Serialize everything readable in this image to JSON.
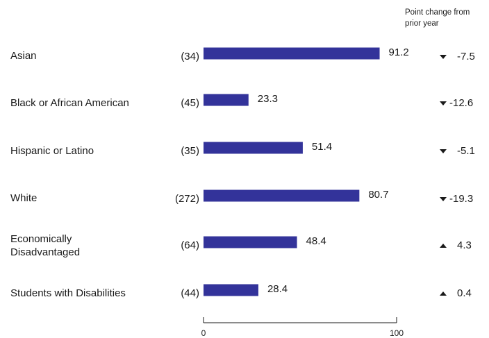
{
  "chart_data": {
    "type": "bar",
    "orientation": "horizontal",
    "categories": [
      "Asian",
      "Black or African American",
      "Hispanic or Latino",
      "White",
      "Economically Disadvantaged",
      "Students with Disabilities"
    ],
    "counts": [
      "(34)",
      "(45)",
      "(35)",
      "(272)",
      "(64)",
      "(44)"
    ],
    "values": [
      91.2,
      23.3,
      51.4,
      80.7,
      48.4,
      28.4
    ],
    "point_change": [
      -7.5,
      -12.6,
      -5.1,
      -19.3,
      4.3,
      0.4
    ],
    "point_change_labels": [
      "-7.5",
      "-12.6",
      "-5.1",
      "-19.3",
      "4.3",
      "0.4"
    ],
    "change_direction": [
      "down",
      "down",
      "down",
      "down",
      "up",
      "up"
    ],
    "change_header": "Point change from prior year",
    "xlim": [
      0,
      100
    ],
    "x_ticks": [
      "0",
      "100"
    ],
    "grid": false,
    "bar_color": "#33339a",
    "title": "",
    "xlabel": "",
    "ylabel": ""
  }
}
